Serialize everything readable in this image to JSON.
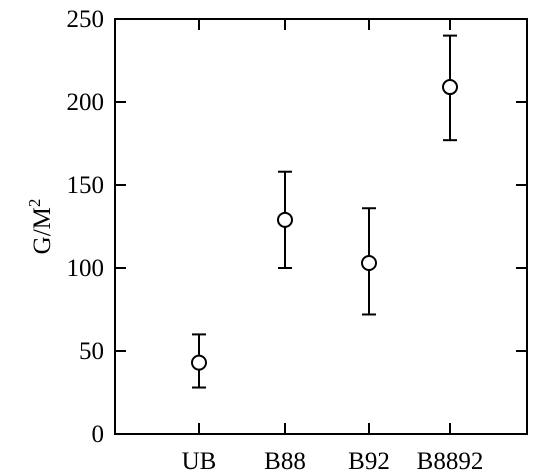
{
  "chart_data": {
    "type": "scatter",
    "title": "",
    "xlabel": "",
    "ylabel": "G/M",
    "ylabel_superscript": "2",
    "categories": [
      "UB",
      "B88",
      "B92",
      "B8892"
    ],
    "series": [
      {
        "values": [
          43,
          129,
          103,
          209
        ],
        "error_low": [
          28,
          100,
          72,
          177
        ],
        "error_high": [
          60,
          158,
          136,
          240
        ],
        "marker": "open-circle"
      }
    ],
    "ylim": [
      0,
      250
    ],
    "yticks": [
      0,
      50,
      100,
      150,
      200,
      250
    ],
    "ytick_labels": [
      "0",
      "50",
      "100",
      "150",
      "200",
      "250"
    ],
    "grid": false,
    "legend": "none"
  }
}
